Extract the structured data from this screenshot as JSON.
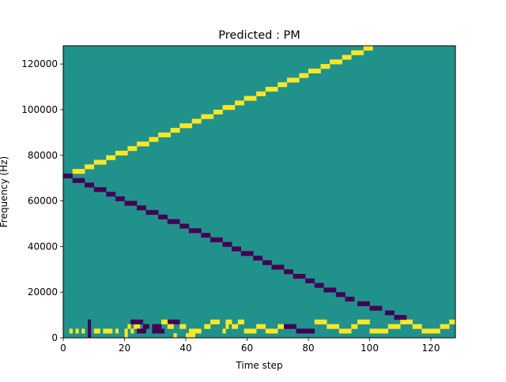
{
  "chart_data": {
    "type": "heatmap",
    "title": "Predicted : PM",
    "xlabel": "Time step",
    "ylabel": "Frequency (Hz)",
    "xlim": [
      0,
      128
    ],
    "ylim": [
      0,
      128000
    ],
    "xticks": [
      0,
      20,
      40,
      60,
      80,
      100,
      120
    ],
    "yticks": [
      0,
      20000,
      40000,
      60000,
      80000,
      100000,
      120000
    ],
    "xtick_labels": [
      "0",
      "20",
      "40",
      "60",
      "80",
      "100",
      "120"
    ],
    "ytick_labels": [
      "0",
      "20000",
      "40000",
      "60000",
      "80000",
      "100000",
      "120000"
    ],
    "n_time_steps": 128,
    "n_freq_bins": 64,
    "bin_height_hz": 2000,
    "levels": [
      -1,
      0,
      1
    ],
    "colormap": "viridis",
    "colors": {
      "-1": "#440154",
      "0": "#21918c",
      "1": "#fde725"
    },
    "grid": false,
    "legend": "none",
    "default_value": 0,
    "cells": [
      [
        4,
        1
      ],
      [
        2,
        1
      ],
      [
        6,
        1
      ],
      [
        8,
        1
      ],
      [
        11,
        1
      ],
      [
        10,
        1
      ],
      [
        8,
        0,
        -1
      ],
      [
        8,
        1,
        -1
      ],
      [
        8,
        2,
        -1
      ],
      [
        8,
        3,
        -1
      ],
      [
        13,
        1
      ],
      [
        17,
        1
      ],
      [
        14,
        1
      ],
      [
        15,
        1
      ],
      [
        20,
        0,
        1
      ],
      [
        20,
        1,
        1
      ],
      [
        22,
        1,
        1
      ],
      [
        21,
        2,
        1
      ],
      [
        23,
        2,
        1
      ],
      [
        24,
        2,
        1
      ],
      [
        22,
        3,
        -1
      ],
      [
        23,
        3,
        -1
      ],
      [
        24,
        3,
        -1
      ],
      [
        25,
        3,
        -1
      ],
      [
        26,
        2,
        -1
      ],
      [
        27,
        2,
        -1
      ],
      [
        24,
        1,
        -1
      ],
      [
        25,
        1,
        -1
      ],
      [
        26,
        1,
        -1
      ],
      [
        29,
        1,
        -1
      ],
      [
        30,
        1,
        -1
      ],
      [
        31,
        1,
        -1
      ],
      [
        32,
        1,
        -1
      ],
      [
        29,
        2,
        -1
      ],
      [
        30,
        2,
        -1
      ],
      [
        31,
        2,
        -1
      ],
      [
        34,
        3,
        -1
      ],
      [
        35,
        3,
        -1
      ],
      [
        36,
        3,
        -1
      ],
      [
        37,
        3,
        -1
      ],
      [
        34,
        2,
        1
      ],
      [
        35,
        2,
        1
      ],
      [
        38,
        2,
        1
      ],
      [
        39,
        2,
        1
      ],
      [
        32,
        3,
        1
      ],
      [
        33,
        3,
        1
      ],
      [
        36,
        0,
        1
      ],
      [
        40,
        0,
        1
      ],
      [
        41,
        0,
        1
      ],
      [
        42,
        0,
        1
      ],
      [
        41,
        1,
        1
      ],
      [
        42,
        1,
        1
      ],
      [
        43,
        1,
        1
      ],
      [
        44,
        1,
        1
      ],
      [
        46,
        2,
        1
      ],
      [
        47,
        2,
        1
      ],
      [
        48,
        3,
        1
      ],
      [
        49,
        3,
        1
      ],
      [
        50,
        3,
        1
      ],
      [
        53,
        3,
        1
      ],
      [
        54,
        3,
        1
      ],
      [
        52,
        1,
        1
      ],
      [
        53,
        2,
        1
      ],
      [
        55,
        2,
        1
      ],
      [
        56,
        2,
        1
      ],
      [
        57,
        3,
        1
      ],
      [
        58,
        3,
        1
      ],
      [
        59,
        1,
        1
      ],
      [
        60,
        1,
        1
      ],
      [
        61,
        1,
        1
      ],
      [
        62,
        1,
        1
      ],
      [
        63,
        2,
        1
      ],
      [
        64,
        2,
        1
      ],
      [
        65,
        2,
        1
      ],
      [
        66,
        1,
        1
      ],
      [
        67,
        1,
        1
      ],
      [
        68,
        1,
        1
      ],
      [
        69,
        1,
        1
      ],
      [
        70,
        2,
        1
      ],
      [
        71,
        2,
        1
      ],
      [
        72,
        2,
        -1
      ],
      [
        73,
        2,
        -1
      ],
      [
        74,
        2,
        -1
      ],
      [
        75,
        2,
        -1
      ],
      [
        76,
        1,
        -1
      ],
      [
        77,
        1,
        -1
      ],
      [
        78,
        1,
        -1
      ],
      [
        79,
        1,
        -1
      ],
      [
        80,
        1,
        -1
      ],
      [
        81,
        1,
        -1
      ],
      [
        82,
        3,
        1
      ],
      [
        83,
        3,
        1
      ],
      [
        84,
        3,
        1
      ],
      [
        85,
        3,
        1
      ],
      [
        86,
        2,
        1
      ],
      [
        87,
        2,
        1
      ],
      [
        88,
        2,
        1
      ],
      [
        89,
        2,
        1
      ],
      [
        90,
        1,
        1
      ],
      [
        91,
        1,
        1
      ],
      [
        92,
        1,
        1
      ],
      [
        93,
        1,
        1
      ],
      [
        94,
        2,
        1
      ],
      [
        95,
        2,
        1
      ],
      [
        96,
        3,
        1
      ],
      [
        97,
        3,
        1
      ],
      [
        98,
        3,
        1
      ],
      [
        99,
        3,
        1
      ],
      [
        100,
        1,
        1
      ],
      [
        101,
        1,
        1
      ],
      [
        102,
        1,
        1
      ],
      [
        103,
        1,
        1
      ],
      [
        104,
        1,
        1
      ],
      [
        105,
        1,
        1
      ],
      [
        106,
        2,
        1
      ],
      [
        107,
        2,
        1
      ],
      [
        108,
        2,
        1
      ],
      [
        109,
        2,
        1
      ],
      [
        110,
        3,
        1
      ],
      [
        111,
        3,
        1
      ],
      [
        112,
        3,
        1
      ],
      [
        113,
        3,
        1
      ],
      [
        114,
        2,
        1
      ],
      [
        115,
        2,
        1
      ],
      [
        116,
        2,
        1
      ],
      [
        117,
        1,
        1
      ],
      [
        118,
        1,
        1
      ],
      [
        119,
        1,
        1
      ],
      [
        120,
        1,
        1
      ],
      [
        121,
        1,
        1
      ],
      [
        122,
        1,
        1
      ],
      [
        123,
        2,
        1
      ],
      [
        124,
        2,
        1
      ],
      [
        125,
        2,
        1
      ],
      [
        126,
        3,
        1
      ],
      [
        127,
        3,
        1
      ],
      [
        108,
        4,
        -1
      ],
      [
        109,
        4,
        -1
      ],
      [
        110,
        4,
        -1
      ],
      [
        111,
        4,
        -1
      ],
      [
        105,
        5,
        -1
      ],
      [
        106,
        5,
        -1
      ],
      [
        107,
        5,
        -1
      ],
      [
        100,
        6,
        -1
      ],
      [
        101,
        6,
        -1
      ],
      [
        102,
        6,
        -1
      ],
      [
        103,
        6,
        -1
      ],
      [
        96,
        7,
        -1
      ],
      [
        97,
        7,
        -1
      ],
      [
        98,
        7,
        -1
      ],
      [
        99,
        7,
        -1
      ],
      [
        92,
        8,
        -1
      ],
      [
        93,
        8,
        -1
      ],
      [
        94,
        8,
        -1
      ],
      [
        89,
        9,
        -1
      ],
      [
        90,
        9,
        -1
      ],
      [
        91,
        9,
        -1
      ],
      [
        85,
        10,
        -1
      ],
      [
        86,
        10,
        -1
      ],
      [
        87,
        10,
        -1
      ],
      [
        88,
        10,
        -1
      ],
      [
        82,
        11,
        -1
      ],
      [
        83,
        11,
        -1
      ],
      [
        84,
        11,
        -1
      ],
      [
        79,
        12,
        -1
      ],
      [
        80,
        12,
        -1
      ],
      [
        81,
        12,
        -1
      ],
      [
        75,
        13,
        -1
      ],
      [
        76,
        13,
        -1
      ],
      [
        77,
        13,
        -1
      ],
      [
        78,
        13,
        -1
      ],
      [
        72,
        14,
        -1
      ],
      [
        73,
        14,
        -1
      ],
      [
        74,
        14,
        -1
      ],
      [
        68,
        15,
        -1
      ],
      [
        69,
        15,
        -1
      ],
      [
        70,
        15,
        -1
      ],
      [
        71,
        15,
        -1
      ],
      [
        65,
        16,
        -1
      ],
      [
        66,
        16,
        -1
      ],
      [
        67,
        16,
        -1
      ],
      [
        62,
        17,
        -1
      ],
      [
        63,
        17,
        -1
      ],
      [
        64,
        17,
        -1
      ],
      [
        58,
        18,
        -1
      ],
      [
        59,
        18,
        -1
      ],
      [
        60,
        18,
        -1
      ],
      [
        61,
        18,
        -1
      ],
      [
        55,
        19,
        -1
      ],
      [
        56,
        19,
        -1
      ],
      [
        57,
        19,
        -1
      ],
      [
        52,
        20,
        -1
      ],
      [
        53,
        20,
        -1
      ],
      [
        54,
        20,
        -1
      ],
      [
        48,
        21,
        -1
      ],
      [
        49,
        21,
        -1
      ],
      [
        50,
        21,
        -1
      ],
      [
        51,
        21,
        -1
      ],
      [
        45,
        22,
        -1
      ],
      [
        46,
        22,
        -1
      ],
      [
        47,
        22,
        -1
      ],
      [
        41,
        23,
        -1
      ],
      [
        42,
        23,
        -1
      ],
      [
        43,
        23,
        -1
      ],
      [
        44,
        23,
        -1
      ],
      [
        38,
        24,
        -1
      ],
      [
        39,
        24,
        -1
      ],
      [
        40,
        24,
        -1
      ],
      [
        34,
        25,
        -1
      ],
      [
        35,
        25,
        -1
      ],
      [
        36,
        25,
        -1
      ],
      [
        37,
        25,
        -1
      ],
      [
        31,
        26,
        -1
      ],
      [
        32,
        26,
        -1
      ],
      [
        33,
        26,
        -1
      ],
      [
        27,
        27,
        -1
      ],
      [
        28,
        27,
        -1
      ],
      [
        29,
        27,
        -1
      ],
      [
        30,
        27,
        -1
      ],
      [
        24,
        28,
        -1
      ],
      [
        25,
        28,
        -1
      ],
      [
        26,
        28,
        -1
      ],
      [
        20,
        29,
        -1
      ],
      [
        21,
        29,
        -1
      ],
      [
        22,
        29,
        -1
      ],
      [
        23,
        29,
        -1
      ],
      [
        17,
        30,
        -1
      ],
      [
        18,
        30,
        -1
      ],
      [
        19,
        30,
        -1
      ],
      [
        14,
        31,
        -1
      ],
      [
        15,
        31,
        -1
      ],
      [
        16,
        31,
        -1
      ],
      [
        10,
        32,
        -1
      ],
      [
        11,
        32,
        -1
      ],
      [
        12,
        32,
        -1
      ],
      [
        13,
        32,
        -1
      ],
      [
        7,
        33,
        -1
      ],
      [
        8,
        33,
        -1
      ],
      [
        9,
        33,
        -1
      ],
      [
        3,
        34,
        -1
      ],
      [
        4,
        34,
        -1
      ],
      [
        5,
        34,
        -1
      ],
      [
        6,
        34,
        -1
      ],
      [
        0,
        35,
        -1
      ],
      [
        1,
        35,
        -1
      ],
      [
        2,
        35,
        -1
      ],
      [
        3,
        36,
        1
      ],
      [
        4,
        36,
        1
      ],
      [
        5,
        36,
        1
      ],
      [
        6,
        36,
        1
      ],
      [
        7,
        37,
        1
      ],
      [
        8,
        37,
        1
      ],
      [
        9,
        37,
        1
      ],
      [
        10,
        38,
        1
      ],
      [
        11,
        38,
        1
      ],
      [
        12,
        38,
        1
      ],
      [
        13,
        38,
        1
      ],
      [
        14,
        39,
        1
      ],
      [
        15,
        39,
        1
      ],
      [
        16,
        39,
        1
      ],
      [
        17,
        40,
        1
      ],
      [
        18,
        40,
        1
      ],
      [
        19,
        40,
        1
      ],
      [
        20,
        40,
        1
      ],
      [
        21,
        41,
        1
      ],
      [
        22,
        41,
        1
      ],
      [
        23,
        41,
        1
      ],
      [
        24,
        42,
        1
      ],
      [
        25,
        42,
        1
      ],
      [
        26,
        42,
        1
      ],
      [
        27,
        42,
        1
      ],
      [
        28,
        43,
        1
      ],
      [
        29,
        43,
        1
      ],
      [
        30,
        43,
        1
      ],
      [
        31,
        44,
        1
      ],
      [
        32,
        44,
        1
      ],
      [
        33,
        44,
        1
      ],
      [
        34,
        44,
        1
      ],
      [
        35,
        45,
        1
      ],
      [
        36,
        45,
        1
      ],
      [
        37,
        45,
        1
      ],
      [
        38,
        46,
        1
      ],
      [
        39,
        46,
        1
      ],
      [
        40,
        46,
        1
      ],
      [
        41,
        46,
        1
      ],
      [
        42,
        47,
        1
      ],
      [
        43,
        47,
        1
      ],
      [
        44,
        47,
        1
      ],
      [
        45,
        48,
        1
      ],
      [
        46,
        48,
        1
      ],
      [
        47,
        48,
        1
      ],
      [
        48,
        48,
        1
      ],
      [
        49,
        49,
        1
      ],
      [
        50,
        49,
        1
      ],
      [
        51,
        49,
        1
      ],
      [
        52,
        50,
        1
      ],
      [
        53,
        50,
        1
      ],
      [
        54,
        50,
        1
      ],
      [
        55,
        50,
        1
      ],
      [
        56,
        51,
        1
      ],
      [
        57,
        51,
        1
      ],
      [
        58,
        51,
        1
      ],
      [
        59,
        52,
        1
      ],
      [
        60,
        52,
        1
      ],
      [
        61,
        52,
        1
      ],
      [
        62,
        52,
        1
      ],
      [
        63,
        53,
        1
      ],
      [
        64,
        53,
        1
      ],
      [
        65,
        53,
        1
      ],
      [
        66,
        54,
        1
      ],
      [
        67,
        54,
        1
      ],
      [
        68,
        54,
        1
      ],
      [
        69,
        54,
        1
      ],
      [
        70,
        55,
        1
      ],
      [
        71,
        55,
        1
      ],
      [
        72,
        55,
        1
      ],
      [
        73,
        56,
        1
      ],
      [
        74,
        56,
        1
      ],
      [
        75,
        56,
        1
      ],
      [
        76,
        56,
        1
      ],
      [
        77,
        57,
        1
      ],
      [
        78,
        57,
        1
      ],
      [
        79,
        57,
        1
      ],
      [
        80,
        58,
        1
      ],
      [
        81,
        58,
        1
      ],
      [
        82,
        58,
        1
      ],
      [
        83,
        58,
        1
      ],
      [
        84,
        59,
        1
      ],
      [
        85,
        59,
        1
      ],
      [
        86,
        59,
        1
      ],
      [
        87,
        60,
        1
      ],
      [
        88,
        60,
        1
      ],
      [
        89,
        60,
        1
      ],
      [
        90,
        60,
        1
      ],
      [
        91,
        61,
        1
      ],
      [
        92,
        61,
        1
      ],
      [
        93,
        61,
        1
      ],
      [
        94,
        62,
        1
      ],
      [
        95,
        62,
        1
      ],
      [
        96,
        62,
        1
      ],
      [
        97,
        62,
        1
      ],
      [
        98,
        63,
        1
      ],
      [
        99,
        63,
        1
      ],
      [
        100,
        63,
        1
      ]
    ]
  }
}
